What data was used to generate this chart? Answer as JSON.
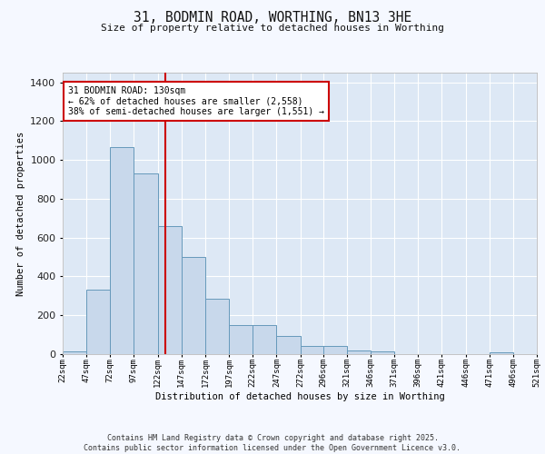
{
  "title": "31, BODMIN ROAD, WORTHING, BN13 3HE",
  "subtitle": "Size of property relative to detached houses in Worthing",
  "xlabel": "Distribution of detached houses by size in Worthing",
  "ylabel": "Number of detached properties",
  "bar_color": "#c8d8eb",
  "bar_edge_color": "#6699bb",
  "background_color": "#dde8f5",
  "grid_color": "#ffffff",
  "fig_bg_color": "#f5f8ff",
  "vline_x": 130,
  "vline_color": "#cc0000",
  "annotation_text": "31 BODMIN ROAD: 130sqm\n← 62% of detached houses are smaller (2,558)\n38% of semi-detached houses are larger (1,551) →",
  "annotation_box_color": "#ffffff",
  "annotation_box_edge_color": "#cc0000",
  "footer_text": "Contains HM Land Registry data © Crown copyright and database right 2025.\nContains public sector information licensed under the Open Government Licence v3.0.",
  "bin_edges": [
    22,
    47,
    72,
    97,
    122,
    147,
    172,
    197,
    222,
    247,
    272,
    296,
    321,
    346,
    371,
    396,
    421,
    446,
    471,
    496,
    521
  ],
  "counts": [
    15,
    330,
    1065,
    930,
    660,
    500,
    285,
    150,
    150,
    95,
    42,
    42,
    18,
    12,
    0,
    0,
    0,
    0,
    8,
    0
  ],
  "ylim": [
    0,
    1450
  ],
  "xlim": [
    22,
    521
  ],
  "yticks": [
    0,
    200,
    400,
    600,
    800,
    1000,
    1200,
    1400
  ],
  "tick_labels": [
    "22sqm",
    "47sqm",
    "72sqm",
    "97sqm",
    "122sqm",
    "147sqm",
    "172sqm",
    "197sqm",
    "222sqm",
    "247sqm",
    "272sqm",
    "296sqm",
    "321sqm",
    "346sqm",
    "371sqm",
    "396sqm",
    "421sqm",
    "446sqm",
    "471sqm",
    "496sqm",
    "521sqm"
  ]
}
